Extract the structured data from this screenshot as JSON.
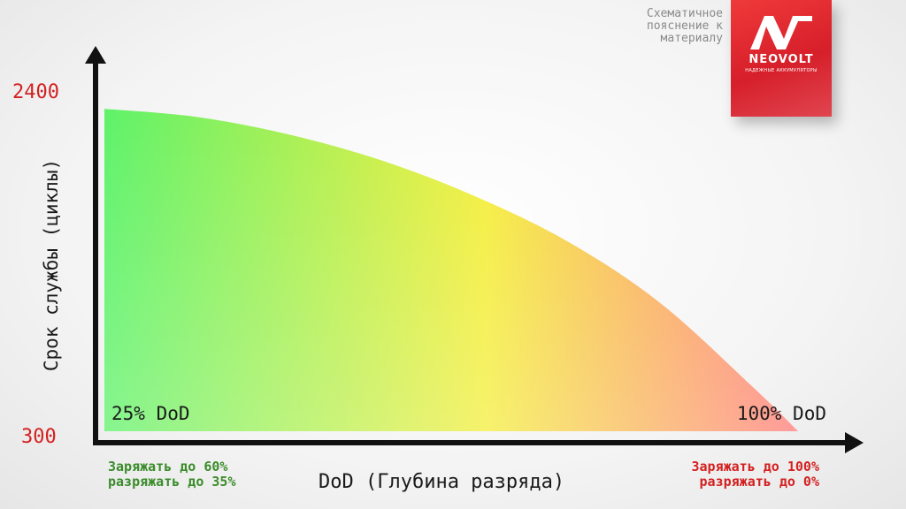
{
  "chart_data": {
    "type": "area",
    "title": "",
    "xlabel": "DoD (Глубина разряда)",
    "ylabel": "Срок службы (циклы)",
    "x": [
      25,
      35,
      45,
      55,
      65,
      75,
      85,
      95,
      100
    ],
    "y": [
      2300,
      2250,
      2140,
      1980,
      1760,
      1480,
      1100,
      580,
      300
    ],
    "xlim": [
      25,
      100
    ],
    "ylim": [
      300,
      2400
    ],
    "ytick_labels": [
      "2400",
      "300"
    ],
    "x_annotations": {
      "left": "25% DoD",
      "right": "100% DoD"
    },
    "gradient_colors": [
      "#5ef26a",
      "#f4ee3c",
      "#ff7a7a"
    ],
    "grid": false
  },
  "notes": {
    "left": [
      "Заряжать до 60%",
      "разряжать до 35%"
    ],
    "right": [
      "Заряжать до 100%",
      "разряжать до 0%"
    ]
  },
  "schema_note": [
    "Схематичное",
    "пояснение к",
    "материалу"
  ],
  "logo": {
    "name": "NEOVOLT",
    "tagline": "НАДЕЖНЫЕ АККУМУЛЯТОРЫ",
    "color": "#e0282e"
  },
  "colors": {
    "accent": "#d42020",
    "green": "#3a8c2a"
  }
}
